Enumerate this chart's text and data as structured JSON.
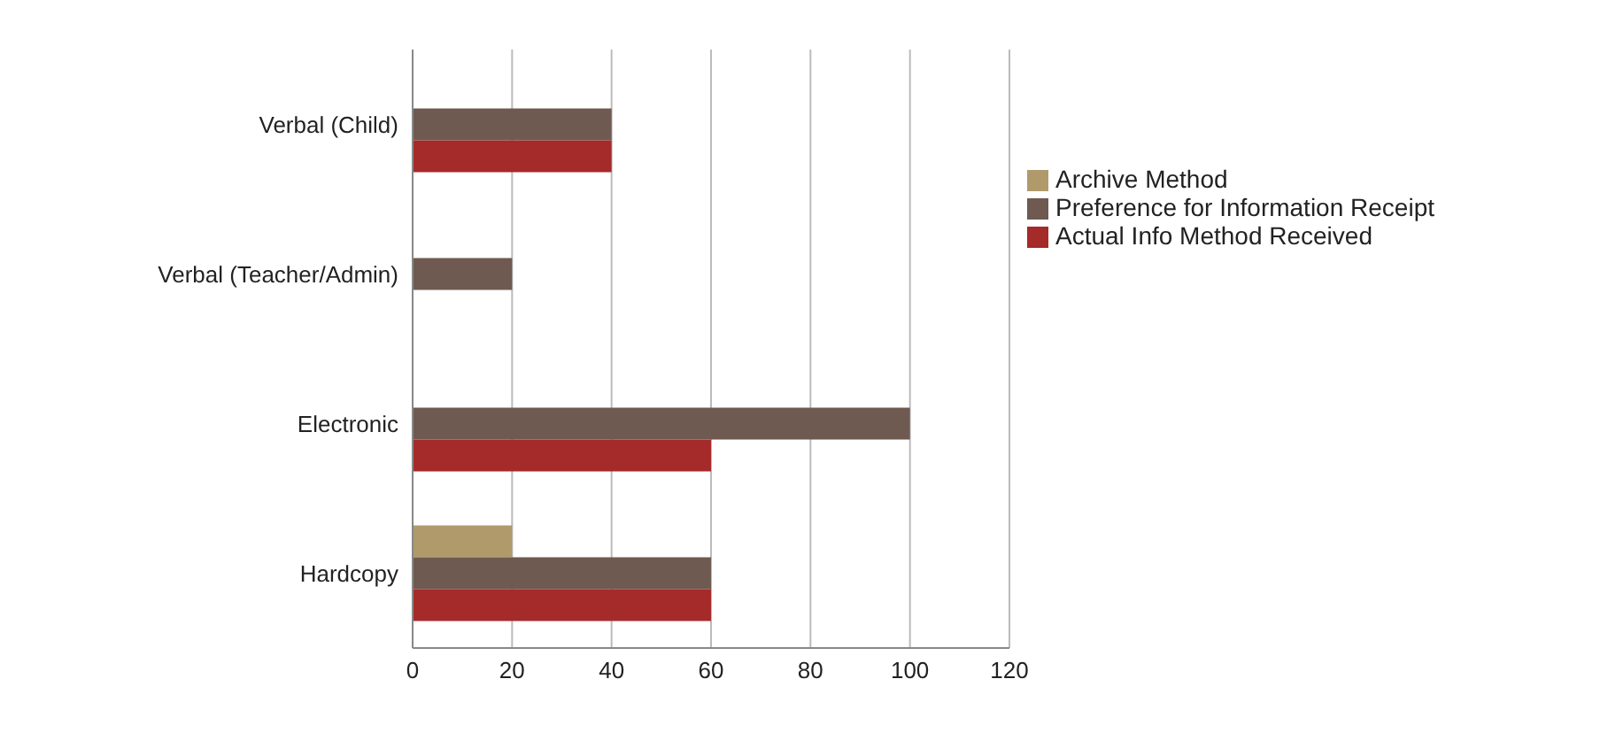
{
  "chart_data": {
    "type": "bar",
    "orientation": "horizontal",
    "categories": [
      "Verbal (Child)",
      "Verbal (Teacher/Admin)",
      "Electronic",
      "Hardcopy"
    ],
    "series": [
      {
        "name": "Archive Method",
        "color": "#b09a6c",
        "values": [
          null,
          null,
          null,
          20
        ]
      },
      {
        "name": "Preference for Information Receipt",
        "color": "#6e5a50",
        "values": [
          40,
          20,
          100,
          60
        ]
      },
      {
        "name": "Actual Info Method Received",
        "color": "#a52a2a",
        "values": [
          40,
          null,
          60,
          60
        ]
      }
    ],
    "xlim": [
      0,
      120
    ],
    "xticks": [
      0,
      20,
      40,
      60,
      80,
      100,
      120
    ],
    "grid": "x",
    "legend": "right"
  }
}
